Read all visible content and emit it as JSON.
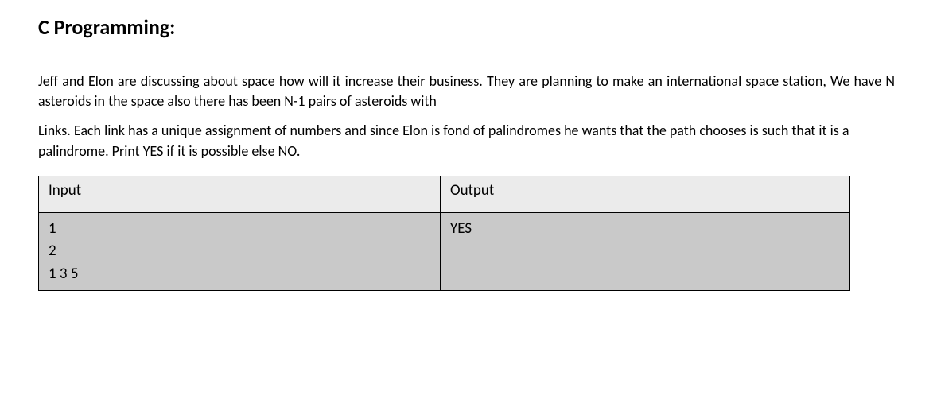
{
  "heading": "C Programming:",
  "paragraph1": "Jeff and Elon are discussing about space how will it increase their business. They are planning to make an international space station, We have N asteroids in the space also there has been N-1 pairs of asteroids with",
  "paragraph2": "Links. Each link has a unique assignment of numbers and since Elon is fond of palindromes he wants that the path chooses is such that it is a palindrome. Print YES if it is possible else NO.",
  "table": {
    "columns": [
      "Input",
      "Output"
    ],
    "column_widths": [
      "505px",
      "515px"
    ],
    "header_bg": "#ebebeb",
    "body_bg": "#c9c9c9",
    "border_color": "#000000",
    "rows": [
      {
        "input_lines": [
          "1",
          "2",
          "1 3 5"
        ],
        "output_lines": [
          "YES"
        ]
      }
    ]
  }
}
